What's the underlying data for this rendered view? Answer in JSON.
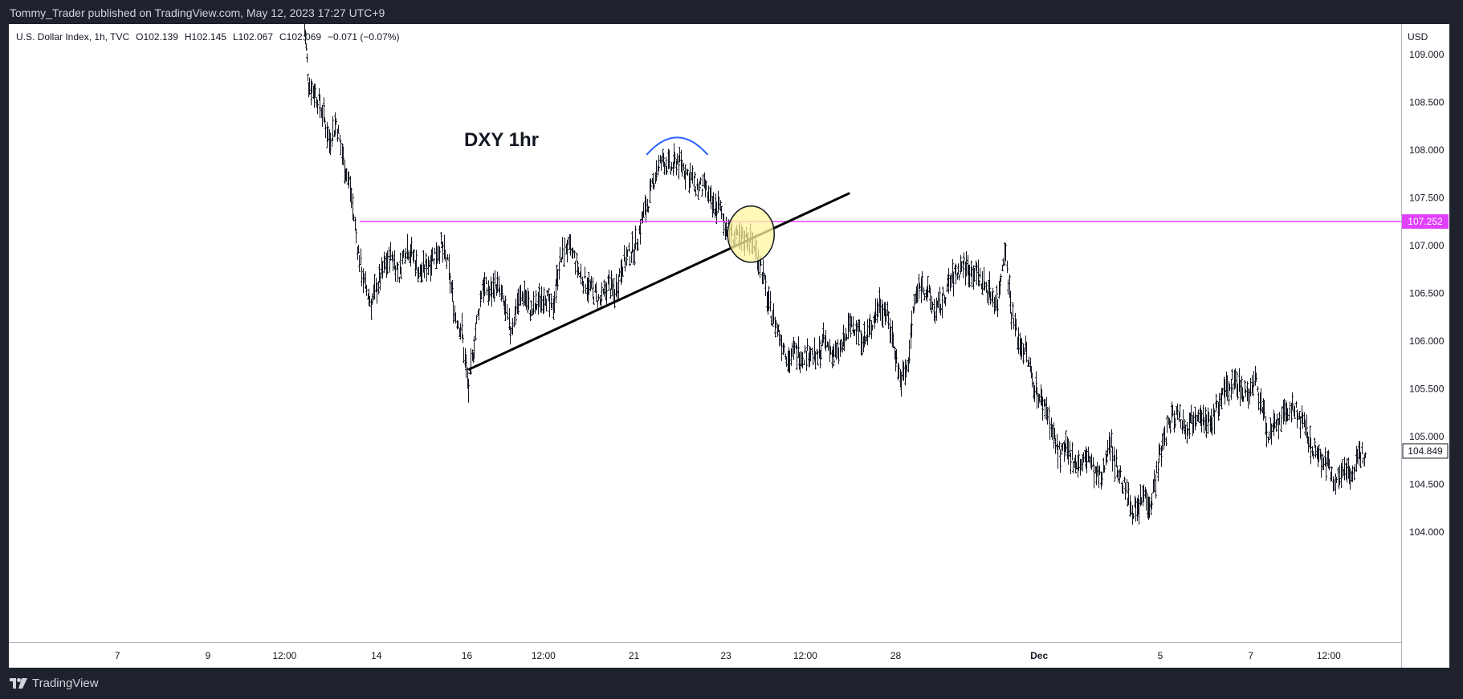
{
  "header": {
    "published_text": "Tommy_Trader published on TradingView.com, May 12, 2023 17:27 UTC+9"
  },
  "footer": {
    "brand": "TradingView",
    "brand_icon": "tradingview-logo-icon"
  },
  "legend": {
    "symbol": "U.S. Dollar Index, 1h, TVC",
    "open": "O102.139",
    "high": "H102.145",
    "low": "L102.067",
    "close": "C102.069",
    "change": "−0.071 (−0.07%)"
  },
  "annotation": {
    "title": "DXY 1hr"
  },
  "colors": {
    "background": "#ffffff",
    "dark_ui": "#1e222d",
    "bars": "#131722",
    "horizontal_level": "#e040fb",
    "arc": "#2962ff",
    "trendline": "#000000",
    "highlight_circle": "#fff59d"
  },
  "chart_data": {
    "type": "line",
    "style": "ohlc-bars",
    "currency_label": "USD",
    "ylim": [
      103.8,
      109.5
    ],
    "y_ticks": [
      "109.000",
      "108.500",
      "108.000",
      "107.500",
      "107.000",
      "106.500",
      "106.000",
      "105.500",
      "105.000",
      "104.500",
      "104.000"
    ],
    "x_ticks": [
      {
        "label": "7",
        "t": 0.078
      },
      {
        "label": "9",
        "t": 0.143
      },
      {
        "label": "12:00",
        "t": 0.198
      },
      {
        "label": "14",
        "t": 0.264
      },
      {
        "label": "16",
        "t": 0.329
      },
      {
        "label": "12:00",
        "t": 0.384
      },
      {
        "label": "21",
        "t": 0.449
      },
      {
        "label": "23",
        "t": 0.515
      },
      {
        "label": "12:00",
        "t": 0.572
      },
      {
        "label": "28",
        "t": 0.637
      },
      {
        "label": "Dec",
        "t": 0.74,
        "bold": true
      },
      {
        "label": "5",
        "t": 0.827
      },
      {
        "label": "7",
        "t": 0.892
      },
      {
        "label": "12:00",
        "t": 0.948
      }
    ],
    "price_labels": {
      "level": "107.252",
      "last": "104.849"
    },
    "series": [
      {
        "values": [
          [
            0.212,
            109.4
          ],
          [
            0.215,
            108.7
          ],
          [
            0.22,
            108.6
          ],
          [
            0.225,
            108.4
          ],
          [
            0.23,
            108.1
          ],
          [
            0.235,
            108.3
          ],
          [
            0.24,
            107.9
          ],
          [
            0.245,
            107.6
          ],
          [
            0.25,
            107.0
          ],
          [
            0.255,
            106.6
          ],
          [
            0.26,
            106.4
          ],
          [
            0.265,
            106.6
          ],
          [
            0.27,
            106.8
          ],
          [
            0.275,
            106.9
          ],
          [
            0.28,
            106.7
          ],
          [
            0.285,
            107.0
          ],
          [
            0.29,
            106.9
          ],
          [
            0.295,
            106.7
          ],
          [
            0.3,
            106.8
          ],
          [
            0.305,
            106.9
          ],
          [
            0.31,
            107.0
          ],
          [
            0.315,
            106.8
          ],
          [
            0.32,
            106.3
          ],
          [
            0.325,
            106.1
          ],
          [
            0.33,
            105.5
          ],
          [
            0.335,
            106.1
          ],
          [
            0.34,
            106.6
          ],
          [
            0.345,
            106.5
          ],
          [
            0.35,
            106.6
          ],
          [
            0.355,
            106.4
          ],
          [
            0.36,
            106.1
          ],
          [
            0.365,
            106.4
          ],
          [
            0.37,
            106.5
          ],
          [
            0.375,
            106.3
          ],
          [
            0.38,
            106.4
          ],
          [
            0.385,
            106.5
          ],
          [
            0.39,
            106.3
          ],
          [
            0.395,
            106.8
          ],
          [
            0.4,
            107.0
          ],
          [
            0.405,
            106.9
          ],
          [
            0.41,
            106.7
          ],
          [
            0.415,
            106.6
          ],
          [
            0.42,
            106.5
          ],
          [
            0.425,
            106.4
          ],
          [
            0.43,
            106.6
          ],
          [
            0.435,
            106.5
          ],
          [
            0.44,
            106.8
          ],
          [
            0.445,
            106.9
          ],
          [
            0.45,
            107.0
          ],
          [
            0.455,
            107.3
          ],
          [
            0.46,
            107.5
          ],
          [
            0.465,
            107.8
          ],
          [
            0.47,
            107.9
          ],
          [
            0.475,
            107.8
          ],
          [
            0.48,
            107.9
          ],
          [
            0.485,
            107.8
          ],
          [
            0.49,
            107.7
          ],
          [
            0.495,
            107.6
          ],
          [
            0.5,
            107.6
          ],
          [
            0.505,
            107.4
          ],
          [
            0.51,
            107.4
          ],
          [
            0.515,
            107.2
          ],
          [
            0.52,
            107.1
          ],
          [
            0.525,
            107.05
          ],
          [
            0.53,
            107.1
          ],
          [
            0.535,
            107.0
          ],
          [
            0.54,
            106.8
          ],
          [
            0.545,
            106.4
          ],
          [
            0.55,
            106.2
          ],
          [
            0.555,
            106.0
          ],
          [
            0.56,
            105.8
          ],
          [
            0.565,
            105.9
          ],
          [
            0.57,
            105.85
          ],
          [
            0.575,
            105.9
          ],
          [
            0.58,
            105.8
          ],
          [
            0.585,
            106.0
          ],
          [
            0.59,
            105.9
          ],
          [
            0.595,
            105.85
          ],
          [
            0.6,
            106.0
          ],
          [
            0.605,
            106.2
          ],
          [
            0.61,
            106.1
          ],
          [
            0.615,
            106.0
          ],
          [
            0.62,
            106.2
          ],
          [
            0.625,
            106.4
          ],
          [
            0.63,
            106.3
          ],
          [
            0.635,
            106.0
          ],
          [
            0.64,
            105.6
          ],
          [
            0.645,
            105.7
          ],
          [
            0.65,
            106.4
          ],
          [
            0.655,
            106.6
          ],
          [
            0.66,
            106.5
          ],
          [
            0.665,
            106.3
          ],
          [
            0.67,
            106.4
          ],
          [
            0.675,
            106.6
          ],
          [
            0.68,
            106.7
          ],
          [
            0.685,
            106.8
          ],
          [
            0.69,
            106.75
          ],
          [
            0.695,
            106.7
          ],
          [
            0.7,
            106.6
          ],
          [
            0.705,
            106.5
          ],
          [
            0.71,
            106.4
          ],
          [
            0.715,
            107.0
          ],
          [
            0.72,
            106.3
          ],
          [
            0.725,
            106.0
          ],
          [
            0.73,
            105.9
          ],
          [
            0.735,
            105.6
          ],
          [
            0.74,
            105.4
          ],
          [
            0.745,
            105.3
          ],
          [
            0.75,
            105.0
          ],
          [
            0.755,
            104.8
          ],
          [
            0.76,
            104.85
          ],
          [
            0.765,
            104.75
          ],
          [
            0.77,
            104.7
          ],
          [
            0.775,
            104.8
          ],
          [
            0.78,
            104.6
          ],
          [
            0.785,
            104.55
          ],
          [
            0.79,
            105.0
          ],
          [
            0.795,
            104.7
          ],
          [
            0.8,
            104.5
          ],
          [
            0.805,
            104.3
          ],
          [
            0.81,
            104.2
          ],
          [
            0.815,
            104.4
          ],
          [
            0.82,
            104.3
          ],
          [
            0.825,
            104.7
          ],
          [
            0.83,
            105.0
          ],
          [
            0.835,
            105.2
          ],
          [
            0.84,
            105.25
          ],
          [
            0.845,
            105.1
          ],
          [
            0.85,
            105.2
          ],
          [
            0.855,
            105.3
          ],
          [
            0.86,
            105.1
          ],
          [
            0.865,
            105.2
          ],
          [
            0.87,
            105.4
          ],
          [
            0.875,
            105.5
          ],
          [
            0.88,
            105.6
          ],
          [
            0.885,
            105.5
          ],
          [
            0.89,
            105.45
          ],
          [
            0.895,
            105.6
          ],
          [
            0.9,
            105.3
          ],
          [
            0.905,
            105.0
          ],
          [
            0.91,
            105.1
          ],
          [
            0.915,
            105.2
          ],
          [
            0.92,
            105.3
          ],
          [
            0.925,
            105.25
          ],
          [
            0.93,
            105.1
          ],
          [
            0.935,
            104.9
          ],
          [
            0.94,
            104.8
          ],
          [
            0.945,
            104.75
          ],
          [
            0.95,
            104.6
          ],
          [
            0.955,
            104.55
          ],
          [
            0.96,
            104.7
          ],
          [
            0.965,
            104.6
          ],
          [
            0.97,
            104.8
          ],
          [
            0.975,
            104.85
          ]
        ]
      }
    ],
    "drawings": {
      "horizontal_level": 107.252,
      "trendline": {
        "from": [
          0.33,
          105.7
        ],
        "to": [
          0.604,
          107.55
        ]
      },
      "arc": {
        "t_from": 0.458,
        "t_to": 0.502,
        "price_base": 107.95,
        "price_top": 108.08
      },
      "circle": {
        "t": 0.533,
        "price": 107.12
      }
    }
  }
}
